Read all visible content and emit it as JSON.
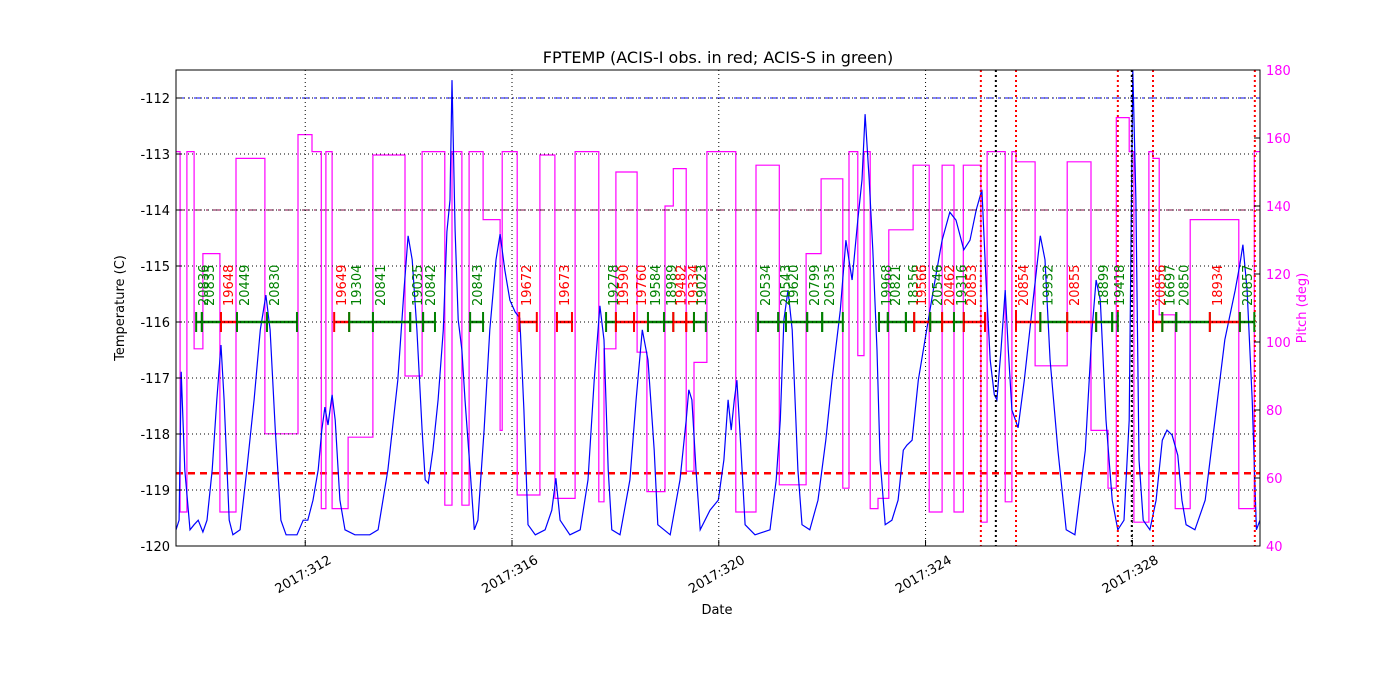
{
  "chart_data": {
    "type": "line",
    "title": "FPTEMP (ACIS-I obs. in red; ACIS-S in green)",
    "xlabel": "Date",
    "ylabel": "Temperature (C)",
    "y2label": "Pitch (deg)",
    "y2color": "#ff00ff",
    "grid": true,
    "xlim": [
      309.5,
      330.47
    ],
    "xticks": [
      {
        "value": 312,
        "label": "2017:312"
      },
      {
        "value": 316,
        "label": "2017:316"
      },
      {
        "value": 320,
        "label": "2017:320"
      },
      {
        "value": 324,
        "label": "2017:324"
      },
      {
        "value": 328,
        "label": "2017:328"
      }
    ],
    "ylim": [
      -120,
      -111.5
    ],
    "yticks": [
      -120,
      -119,
      -118,
      -117,
      -116,
      -115,
      -114,
      -113,
      -112
    ],
    "y2lim": [
      40,
      180
    ],
    "y2ticks": [
      40,
      60,
      80,
      100,
      120,
      140,
      160,
      180
    ],
    "series": [
      {
        "color": "#0000ff",
        "x": [
          309.5,
          309.56,
          309.6,
          309.67,
          309.77,
          309.85,
          309.93,
          310.02,
          310.1,
          310.2,
          310.29,
          310.37,
          310.43,
          310.53,
          310.6,
          310.74,
          310.87,
          311.01,
          311.13,
          311.24,
          311.32,
          311.42,
          311.53,
          311.63,
          311.84,
          311.96,
          312.05,
          312.15,
          312.25,
          312.32,
          312.38,
          312.44,
          312.52,
          312.58,
          312.67,
          312.77,
          312.96,
          313.25,
          313.41,
          313.6,
          313.79,
          313.91,
          313.99,
          314.07,
          314.16,
          314.26,
          314.32,
          314.38,
          314.47,
          314.57,
          314.67,
          314.74,
          314.8,
          314.84,
          314.9,
          314.96,
          315.03,
          315.09,
          315.19,
          315.27,
          315.34,
          315.46,
          315.57,
          315.69,
          315.77,
          315.86,
          315.96,
          316.06,
          316.15,
          316.23,
          316.31,
          316.45,
          316.64,
          316.77,
          316.85,
          316.93,
          317.12,
          317.32,
          317.47,
          317.59,
          317.7,
          317.78,
          317.86,
          317.93,
          318.09,
          318.28,
          318.4,
          318.52,
          318.63,
          318.75,
          318.82,
          319.06,
          319.25,
          319.37,
          319.42,
          319.48,
          319.56,
          319.64,
          319.83,
          319.99,
          320.1,
          320.18,
          320.24,
          320.3,
          320.35,
          320.43,
          320.51,
          320.7,
          320.99,
          321.11,
          321.19,
          321.26,
          321.34,
          321.42,
          321.53,
          321.61,
          321.76,
          321.92,
          322.07,
          322.19,
          322.35,
          322.46,
          322.58,
          322.69,
          322.77,
          322.83,
          322.91,
          322.98,
          323.06,
          323.12,
          323.22,
          323.35,
          323.47,
          323.57,
          323.64,
          323.74,
          323.86,
          323.99,
          324.15,
          324.32,
          324.47,
          324.59,
          324.74,
          324.86,
          324.98,
          325.09,
          325.17,
          325.25,
          325.33,
          325.38,
          325.46,
          325.54,
          325.6,
          325.67,
          325.79,
          325.91,
          326.06,
          326.22,
          326.31,
          326.41,
          326.56,
          326.72,
          326.89,
          327.09,
          327.22,
          327.3,
          327.38,
          327.49,
          327.61,
          327.72,
          327.84,
          327.94,
          328.01,
          328.07,
          328.13,
          328.21,
          328.34,
          328.46,
          328.58,
          328.67,
          328.77,
          328.88,
          328.96,
          329.04,
          329.21,
          329.41,
          329.6,
          329.79,
          329.99,
          330.08,
          330.14,
          330.22,
          330.32,
          330.4,
          330.47
        ],
        "values": [
          -119.71,
          -119.54,
          -116.89,
          -118.64,
          -119.71,
          -119.62,
          -119.54,
          -119.75,
          -119.54,
          -118.64,
          -117.39,
          -116.41,
          -117.39,
          -119.54,
          -119.8,
          -119.71,
          -118.64,
          -117.39,
          -116.14,
          -115.52,
          -116.14,
          -117.93,
          -119.54,
          -119.8,
          -119.8,
          -119.54,
          -119.54,
          -119.18,
          -118.64,
          -117.93,
          -117.52,
          -117.84,
          -117.3,
          -117.75,
          -119.18,
          -119.71,
          -119.8,
          -119.8,
          -119.71,
          -118.64,
          -117.04,
          -115.43,
          -114.46,
          -114.89,
          -116.14,
          -117.93,
          -118.82,
          -118.88,
          -118.29,
          -117.39,
          -116.14,
          -114.39,
          -113.82,
          -111.68,
          -114.36,
          -115.96,
          -116.5,
          -117.39,
          -118.64,
          -119.71,
          -119.54,
          -117.93,
          -116.14,
          -114.89,
          -114.43,
          -115.07,
          -115.61,
          -115.82,
          -115.93,
          -117.57,
          -119.62,
          -119.8,
          -119.71,
          -119.36,
          -118.79,
          -119.54,
          -119.8,
          -119.71,
          -118.82,
          -117.04,
          -115.71,
          -116.32,
          -118.64,
          -119.71,
          -119.8,
          -118.82,
          -117.39,
          -116.14,
          -116.68,
          -118.29,
          -119.62,
          -119.8,
          -118.82,
          -117.75,
          -117.21,
          -117.39,
          -118.64,
          -119.71,
          -119.36,
          -119.18,
          -118.46,
          -117.39,
          -117.93,
          -117.39,
          -117.04,
          -118.29,
          -119.62,
          -119.8,
          -119.71,
          -118.82,
          -117.75,
          -115.96,
          -115.43,
          -116.14,
          -118.64,
          -119.62,
          -119.71,
          -119.18,
          -118.11,
          -117.04,
          -115.79,
          -114.54,
          -115.25,
          -114.18,
          -113.46,
          -112.29,
          -113.46,
          -114.71,
          -116.5,
          -118.46,
          -119.62,
          -119.54,
          -119.18,
          -118.29,
          -118.2,
          -118.11,
          -117.04,
          -116.32,
          -115.43,
          -114.54,
          -114.04,
          -114.18,
          -114.71,
          -114.54,
          -114.0,
          -113.64,
          -115.25,
          -116.68,
          -117.3,
          -117.39,
          -116.5,
          -115.43,
          -116.5,
          -117.57,
          -117.89,
          -117.04,
          -115.79,
          -114.46,
          -114.89,
          -116.68,
          -118.29,
          -119.71,
          -119.8,
          -118.29,
          -116.14,
          -115.25,
          -115.61,
          -117.75,
          -119.18,
          -119.71,
          -119.54,
          -117.75,
          -111.5,
          -113.82,
          -118.46,
          -119.54,
          -119.71,
          -119.18,
          -118.11,
          -117.93,
          -118.02,
          -118.38,
          -119.18,
          -119.62,
          -119.71,
          -119.18,
          -117.75,
          -116.32,
          -115.43,
          -114.98,
          -114.62,
          -115.43,
          -117.39,
          -119.71,
          -119.54
        ]
      },
      {
        "color": "#ff00ff",
        "axis": "y2",
        "x": [
          309.5,
          309.58,
          309.58,
          309.71,
          309.71,
          309.85,
          309.85,
          310.02,
          310.02,
          310.35,
          310.35,
          310.66,
          310.66,
          311.22,
          311.22,
          311.86,
          311.86,
          312.13,
          312.13,
          312.31,
          312.31,
          312.4,
          312.4,
          312.52,
          312.52,
          312.83,
          312.83,
          313.31,
          313.31,
          313.93,
          313.93,
          314.26,
          314.26,
          314.7,
          314.7,
          314.84,
          314.84,
          315.03,
          315.03,
          315.17,
          315.17,
          315.44,
          315.44,
          315.77,
          315.77,
          315.81,
          315.81,
          316.1,
          316.1,
          316.54,
          316.54,
          316.83,
          316.83,
          317.22,
          317.22,
          317.68,
          317.68,
          317.78,
          317.78,
          318.01,
          318.01,
          318.42,
          318.42,
          318.61,
          318.61,
          318.96,
          318.96,
          319.12,
          319.12,
          319.37,
          319.37,
          319.52,
          319.52,
          319.77,
          319.77,
          320.33,
          320.33,
          320.72,
          320.72,
          321.17,
          321.17,
          321.69,
          321.69,
          321.98,
          321.98,
          322.4,
          322.4,
          322.52,
          322.52,
          322.69,
          322.69,
          322.81,
          322.81,
          322.93,
          322.93,
          323.08,
          323.08,
          323.29,
          323.29,
          323.76,
          323.76,
          324.07,
          324.07,
          324.32,
          324.32,
          324.55,
          324.55,
          324.73,
          324.73,
          325.07,
          325.07,
          325.19,
          325.19,
          325.54,
          325.54,
          325.67,
          325.67,
          325.75,
          325.75,
          326.12,
          326.12,
          326.74,
          326.74,
          327.2,
          327.2,
          327.53,
          327.53,
          327.69,
          327.69,
          327.94,
          327.94,
          328.03,
          328.03,
          328.32,
          328.32,
          328.4,
          328.4,
          328.52,
          328.52,
          328.83,
          328.83,
          329.12,
          329.12,
          330.06,
          330.06,
          330.36,
          330.36,
          330.47
        ],
        "values": [
          156,
          156,
          50,
          50,
          156,
          156,
          98,
          98,
          126,
          126,
          50,
          50,
          154,
          154,
          73,
          73,
          161,
          161,
          156,
          156,
          51,
          51,
          156,
          156,
          51,
          51,
          72,
          72,
          155,
          155,
          90,
          90,
          156,
          156,
          52,
          52,
          156,
          156,
          52,
          52,
          156,
          156,
          136,
          136,
          74,
          74,
          156,
          156,
          55,
          55,
          155,
          155,
          54,
          54,
          156,
          156,
          53,
          53,
          98,
          98,
          150,
          150,
          97,
          97,
          56,
          56,
          140,
          140,
          151,
          151,
          62,
          62,
          94,
          94,
          156,
          156,
          50,
          50,
          152,
          152,
          58,
          58,
          126,
          126,
          148,
          148,
          57,
          57,
          156,
          156,
          96,
          96,
          156,
          156,
          51,
          51,
          54,
          54,
          133,
          133,
          152,
          152,
          50,
          50,
          152,
          152,
          50,
          50,
          152,
          152,
          47,
          47,
          156,
          156,
          53,
          53,
          156,
          156,
          153,
          153,
          93,
          93,
          153,
          153,
          74,
          74,
          57,
          57,
          166,
          166,
          156,
          156,
          47,
          47,
          156,
          156,
          154,
          154,
          108,
          108,
          51,
          51,
          136,
          136,
          51,
          51,
          156,
          156
        ]
      }
    ],
    "hlines": [
      {
        "y": -112,
        "color": "#0000ff",
        "style": "dashdot"
      },
      {
        "y": -114,
        "color": "#800040",
        "style": "dashdot"
      },
      {
        "y": -118.7,
        "color": "#ff0000",
        "style": "dashed"
      }
    ],
    "vlines": [
      {
        "x": 325.07,
        "color": "#ff0000"
      },
      {
        "x": 325.75,
        "color": "#ff0000"
      },
      {
        "x": 327.72,
        "color": "#ff0000"
      },
      {
        "x": 328.4,
        "color": "#ff0000"
      },
      {
        "x": 330.37,
        "color": "#ff0000"
      },
      {
        "x": 325.36,
        "color": "#000000"
      },
      {
        "x": 327.99,
        "color": "#000000"
      }
    ],
    "observations": {
      "level": -116,
      "items": [
        {
          "label": "20836",
          "start": 309.89,
          "stop": 310.0,
          "color": "#008000"
        },
        {
          "label": "20835",
          "start": 310.0,
          "stop": 310.37,
          "color": "#008000"
        },
        {
          "label": "19648",
          "start": 310.37,
          "stop": 310.68,
          "color": "#ff0000"
        },
        {
          "label": "20449",
          "start": 310.68,
          "stop": 311.26,
          "color": "#008000"
        },
        {
          "label": "20830",
          "start": 311.26,
          "stop": 311.84,
          "color": "#008000"
        },
        {
          "label": "19649",
          "start": 312.56,
          "stop": 312.85,
          "color": "#ff0000"
        },
        {
          "label": "19304",
          "start": 312.85,
          "stop": 313.31,
          "color": "#008000"
        },
        {
          "label": "20841",
          "start": 313.31,
          "stop": 314.03,
          "color": "#008000"
        },
        {
          "label": "19035",
          "start": 314.03,
          "stop": 314.28,
          "color": "#008000"
        },
        {
          "label": "20842",
          "start": 314.28,
          "stop": 314.51,
          "color": "#008000"
        },
        {
          "label": "20843",
          "start": 315.19,
          "stop": 315.44,
          "color": "#008000"
        },
        {
          "label": "19672",
          "start": 316.14,
          "stop": 316.48,
          "color": "#ff0000"
        },
        {
          "label": "19673",
          "start": 316.87,
          "stop": 317.16,
          "color": "#ff0000"
        },
        {
          "label": "19278",
          "start": 317.82,
          "stop": 318.01,
          "color": "#008000"
        },
        {
          "label": "19590",
          "start": 318.01,
          "stop": 318.36,
          "color": "#ff0000"
        },
        {
          "label": "19760",
          "start": 318.36,
          "stop": 318.63,
          "color": "#ff0000"
        },
        {
          "label": "19584",
          "start": 318.63,
          "stop": 318.94,
          "color": "#008000"
        },
        {
          "label": "18989",
          "start": 318.94,
          "stop": 319.12,
          "color": "#008000"
        },
        {
          "label": "19482",
          "start": 319.12,
          "stop": 319.37,
          "color": "#ff0000"
        },
        {
          "label": "19334",
          "start": 319.37,
          "stop": 319.52,
          "color": "#ff0000"
        },
        {
          "label": "19023",
          "start": 319.52,
          "stop": 319.75,
          "color": "#008000"
        },
        {
          "label": "20534",
          "start": 320.76,
          "stop": 321.15,
          "color": "#008000"
        },
        {
          "label": "20543",
          "start": 321.15,
          "stop": 321.3,
          "color": "#008000"
        },
        {
          "label": "19620",
          "start": 321.3,
          "stop": 321.71,
          "color": "#008000"
        },
        {
          "label": "20799",
          "start": 321.71,
          "stop": 322.0,
          "color": "#008000"
        },
        {
          "label": "20535",
          "start": 322.0,
          "stop": 322.4,
          "color": "#008000"
        },
        {
          "label": "19968",
          "start": 323.1,
          "stop": 323.27,
          "color": "#008000"
        },
        {
          "label": "20821",
          "start": 323.27,
          "stop": 323.62,
          "color": "#008000"
        },
        {
          "label": "18356",
          "start": 323.62,
          "stop": 323.78,
          "color": "#008000"
        },
        {
          "label": "19566",
          "start": 323.78,
          "stop": 324.09,
          "color": "#ff0000"
        },
        {
          "label": "20546",
          "start": 324.09,
          "stop": 324.32,
          "color": "#008000"
        },
        {
          "label": "20462",
          "start": 324.32,
          "stop": 324.55,
          "color": "#ff0000"
        },
        {
          "label": "19316",
          "start": 324.55,
          "stop": 324.74,
          "color": "#008000"
        },
        {
          "label": "20853",
          "start": 324.74,
          "stop": 325.15,
          "color": "#ff0000"
        },
        {
          "label": "20854",
          "start": 325.75,
          "stop": 326.22,
          "color": "#ff0000"
        },
        {
          "label": "19932",
          "start": 326.22,
          "stop": 326.74,
          "color": "#008000"
        },
        {
          "label": "20855",
          "start": 326.74,
          "stop": 327.3,
          "color": "#ff0000"
        },
        {
          "label": "18899",
          "start": 327.3,
          "stop": 327.61,
          "color": "#008000"
        },
        {
          "label": "19418",
          "start": 327.61,
          "stop": 327.72,
          "color": "#008000"
        },
        {
          "label": "20856",
          "start": 328.4,
          "stop": 328.58,
          "color": "#ff0000"
        },
        {
          "label": "16697",
          "start": 328.58,
          "stop": 328.85,
          "color": "#008000"
        },
        {
          "label": "20850",
          "start": 328.85,
          "stop": 329.5,
          "color": "#008000"
        },
        {
          "label": "18934",
          "start": 329.5,
          "stop": 330.08,
          "color": "#ff0000"
        },
        {
          "label": "20857",
          "start": 330.08,
          "stop": 330.36,
          "color": "#008000"
        }
      ]
    }
  }
}
